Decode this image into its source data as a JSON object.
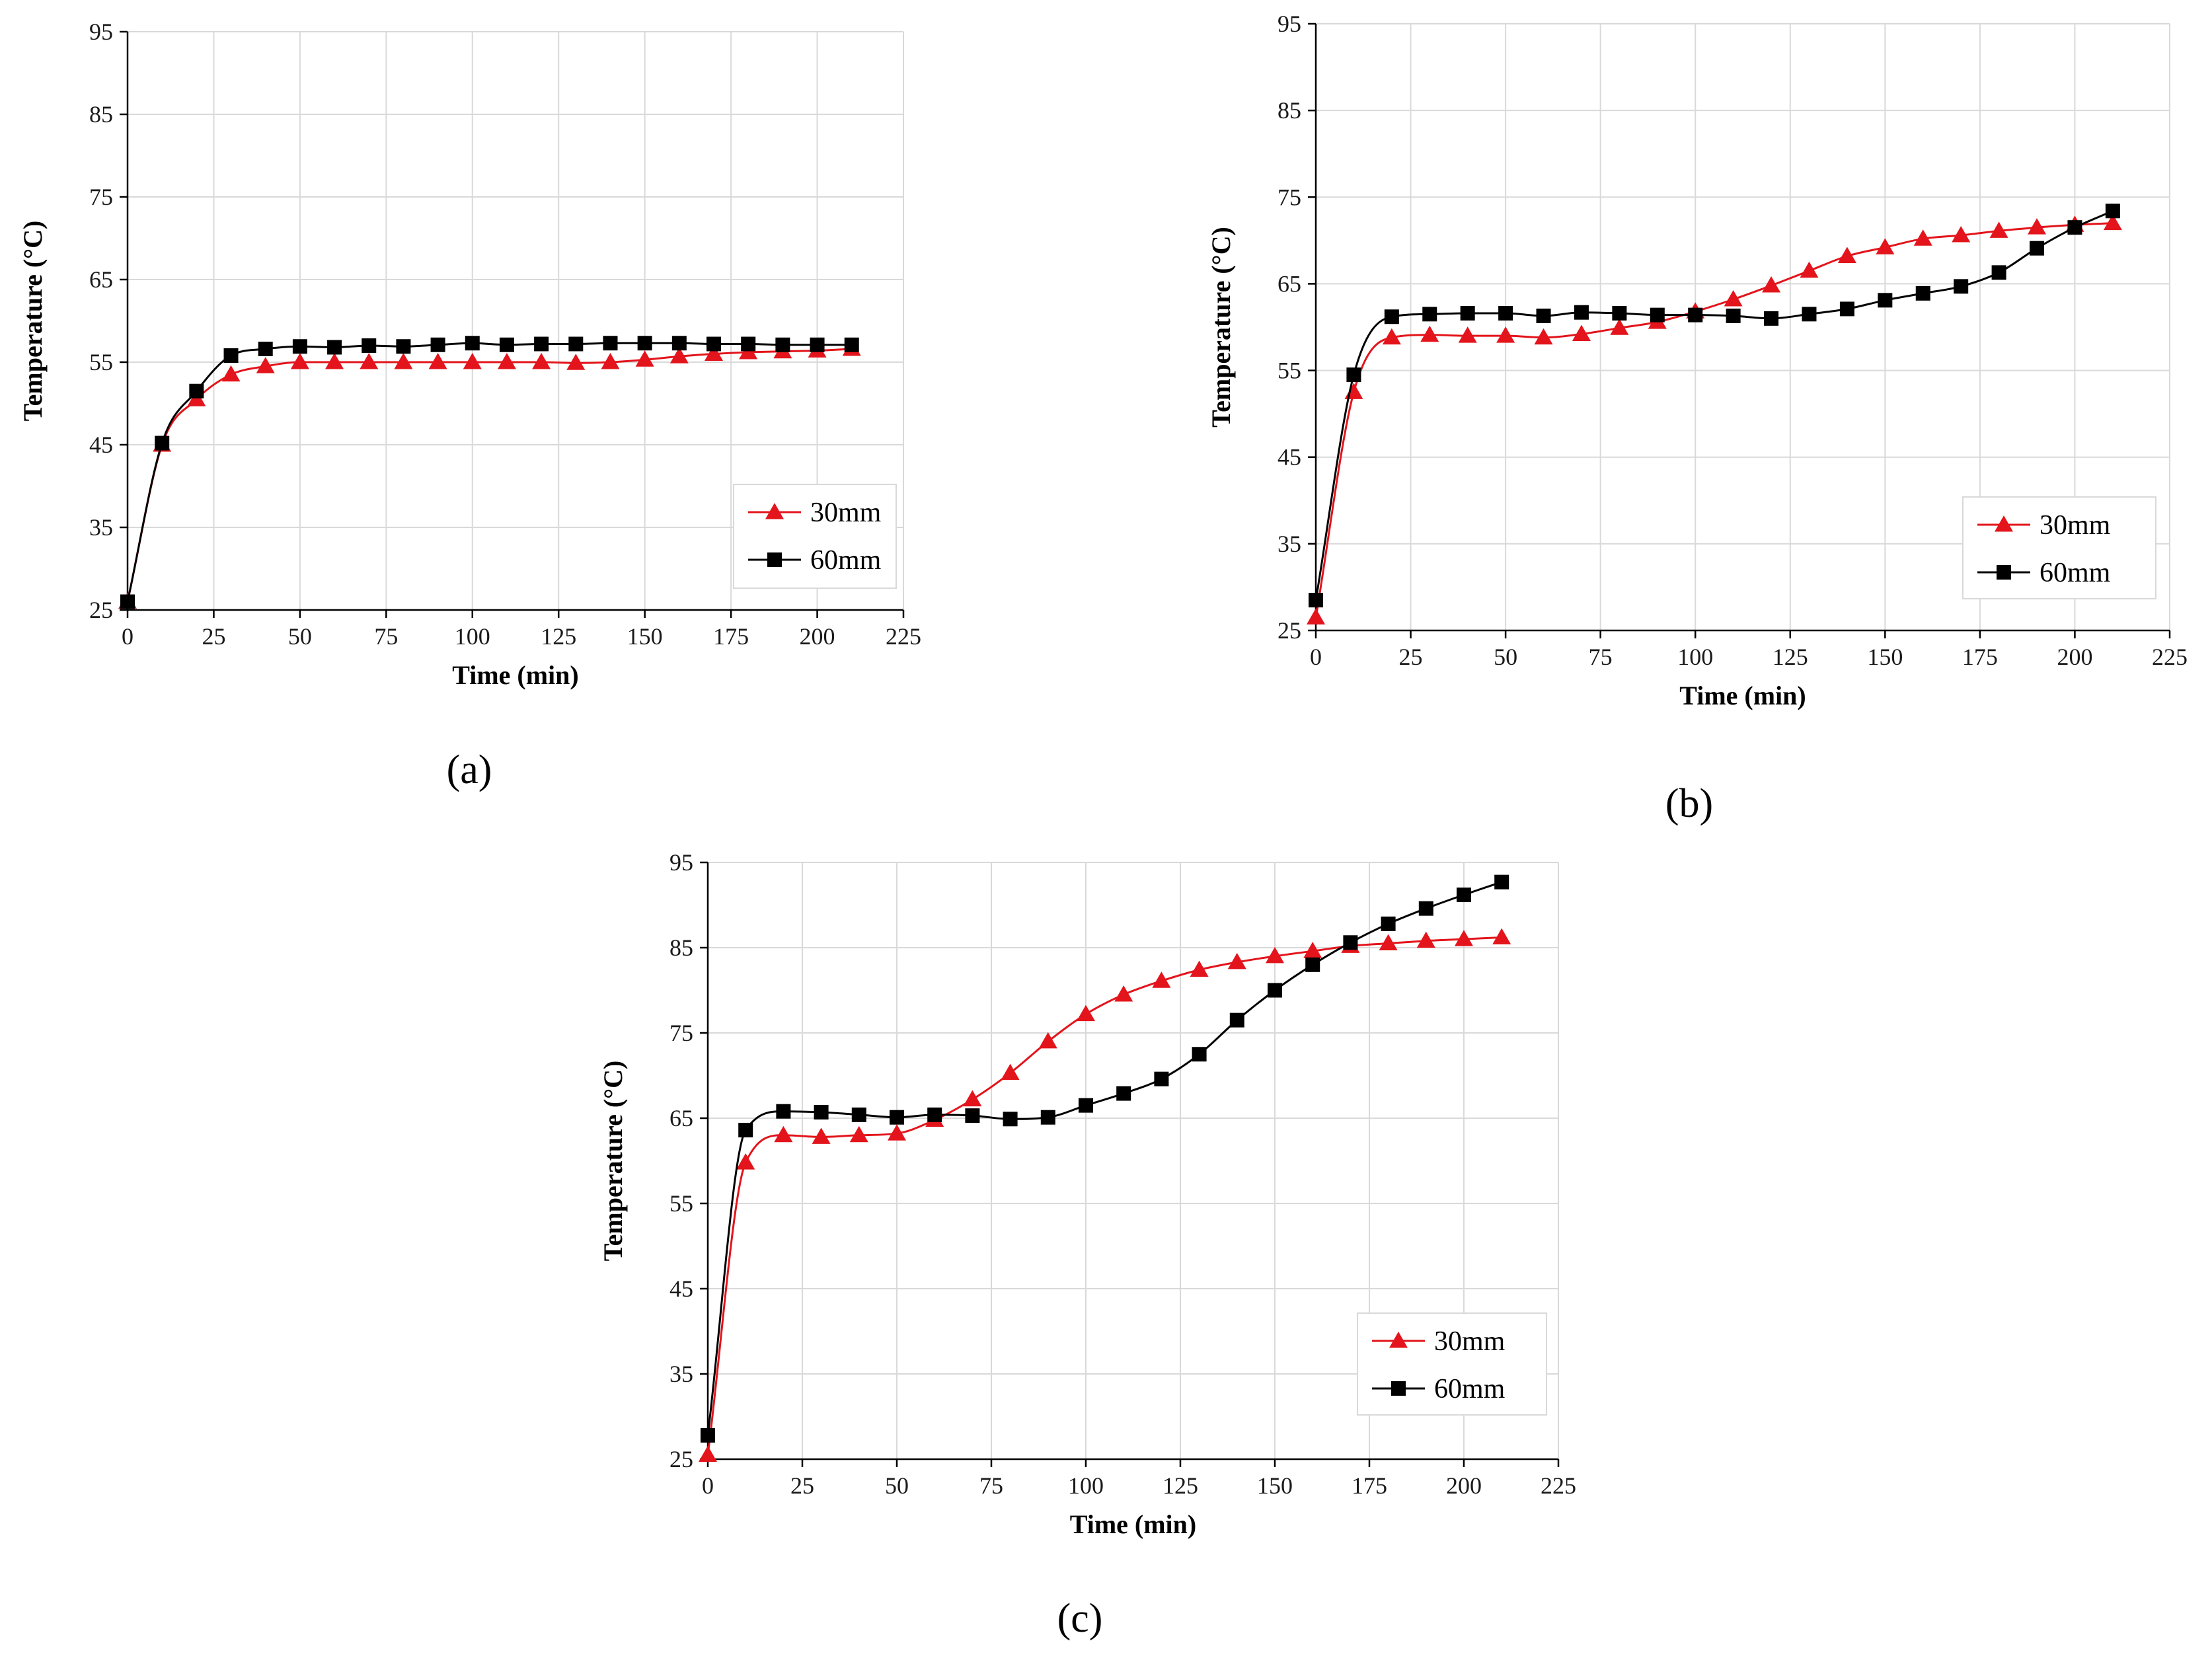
{
  "figure": {
    "panel_labels": [
      "(a)",
      "(b)",
      "(c)"
    ]
  },
  "colors": {
    "series_30mm": "#e3141b",
    "series_60mm": "#000000",
    "grid": "#d9d9d9"
  },
  "chart_data": [
    {
      "panel": "(a)",
      "type": "line",
      "title": "",
      "xlabel": "Time (min)",
      "ylabel": "Temperature (°C)",
      "xlim": [
        0,
        225
      ],
      "ylim": [
        25,
        95
      ],
      "xticks": [
        0,
        25,
        50,
        75,
        100,
        125,
        150,
        175,
        200,
        225
      ],
      "yticks": [
        25,
        35,
        45,
        55,
        65,
        75,
        85,
        95
      ],
      "grid": true,
      "legend_position": "bottom-right",
      "series": [
        {
          "name": "30mm",
          "marker": "triangle",
          "color": "#e3141b",
          "x": [
            0,
            10,
            20,
            30,
            40,
            50,
            60,
            70,
            80,
            90,
            100,
            110,
            120,
            130,
            140,
            150,
            160,
            170,
            180,
            190,
            200,
            210
          ],
          "y": [
            26,
            45,
            50.5,
            53.5,
            54.5,
            55,
            55,
            55,
            55,
            55,
            55,
            55,
            55,
            54.9,
            55,
            55.3,
            55.7,
            56,
            56.2,
            56.3,
            56.4,
            56.6
          ]
        },
        {
          "name": "60mm",
          "marker": "square",
          "color": "#000000",
          "x": [
            0,
            10,
            20,
            30,
            40,
            50,
            60,
            70,
            80,
            90,
            100,
            110,
            120,
            130,
            140,
            150,
            160,
            170,
            180,
            190,
            200,
            210
          ],
          "y": [
            26,
            45.2,
            51.5,
            55.8,
            56.6,
            56.9,
            56.8,
            57,
            56.9,
            57.1,
            57.3,
            57.1,
            57.2,
            57.2,
            57.3,
            57.3,
            57.3,
            57.2,
            57.2,
            57.1,
            57.1,
            57.1
          ]
        }
      ]
    },
    {
      "panel": "(b)",
      "type": "line",
      "title": "",
      "xlabel": "Time (min)",
      "ylabel": "Temperature (°C)",
      "xlim": [
        0,
        225
      ],
      "ylim": [
        25,
        95
      ],
      "xticks": [
        0,
        25,
        50,
        75,
        100,
        125,
        150,
        175,
        200,
        225
      ],
      "yticks": [
        25,
        35,
        45,
        55,
        65,
        75,
        85,
        95
      ],
      "grid": true,
      "legend_position": "bottom-right",
      "series": [
        {
          "name": "30mm",
          "marker": "triangle",
          "color": "#e3141b",
          "x": [
            0,
            10,
            20,
            30,
            40,
            50,
            60,
            70,
            80,
            90,
            100,
            110,
            120,
            130,
            140,
            150,
            160,
            170,
            180,
            190,
            200,
            210
          ],
          "y": [
            26.5,
            52.5,
            58.8,
            59.1,
            59,
            59,
            58.8,
            59.2,
            59.9,
            60.6,
            61.8,
            63.2,
            64.8,
            66.5,
            68.2,
            69.2,
            70.2,
            70.6,
            71.1,
            71.5,
            71.8,
            72
          ]
        },
        {
          "name": "60mm",
          "marker": "square",
          "color": "#000000",
          "x": [
            0,
            10,
            20,
            30,
            40,
            50,
            60,
            70,
            80,
            90,
            100,
            110,
            120,
            130,
            140,
            150,
            160,
            170,
            180,
            190,
            200,
            210
          ],
          "y": [
            28.5,
            54.5,
            61.2,
            61.5,
            61.6,
            61.6,
            61.3,
            61.7,
            61.6,
            61.4,
            61.4,
            61.3,
            61,
            61.5,
            62.1,
            63.1,
            63.9,
            64.7,
            66.3,
            69.1,
            71.5,
            73.4
          ]
        }
      ]
    },
    {
      "panel": "(c)",
      "type": "line",
      "title": "",
      "xlabel": "Time (min)",
      "ylabel": "Temperature (°C)",
      "xlim": [
        0,
        225
      ],
      "ylim": [
        25,
        95
      ],
      "xticks": [
        0,
        25,
        50,
        75,
        100,
        125,
        150,
        175,
        200,
        225
      ],
      "yticks": [
        25,
        35,
        45,
        55,
        65,
        75,
        85,
        95
      ],
      "grid": true,
      "legend_position": "bottom-right",
      "series": [
        {
          "name": "30mm",
          "marker": "triangle",
          "color": "#e3141b",
          "x": [
            0,
            10,
            20,
            30,
            40,
            50,
            60,
            70,
            80,
            90,
            100,
            110,
            120,
            130,
            140,
            150,
            160,
            170,
            180,
            190,
            200,
            210
          ],
          "y": [
            25.5,
            59.8,
            63,
            62.8,
            63,
            63.2,
            64.8,
            67.2,
            70.3,
            74,
            77.2,
            79.5,
            81.1,
            82.4,
            83.3,
            84,
            84.6,
            85.2,
            85.5,
            85.8,
            86,
            86.2
          ]
        },
        {
          "name": "60mm",
          "marker": "square",
          "color": "#000000",
          "x": [
            0,
            10,
            20,
            30,
            40,
            50,
            60,
            70,
            80,
            90,
            100,
            110,
            120,
            130,
            140,
            150,
            160,
            170,
            180,
            190,
            200,
            210
          ],
          "y": [
            27.8,
            63.6,
            65.8,
            65.7,
            65.4,
            65.1,
            65.4,
            65.3,
            64.9,
            65.1,
            66.5,
            67.9,
            69.6,
            72.5,
            76.5,
            80,
            83,
            85.6,
            87.8,
            89.6,
            91.2,
            92.7
          ]
        }
      ]
    }
  ]
}
